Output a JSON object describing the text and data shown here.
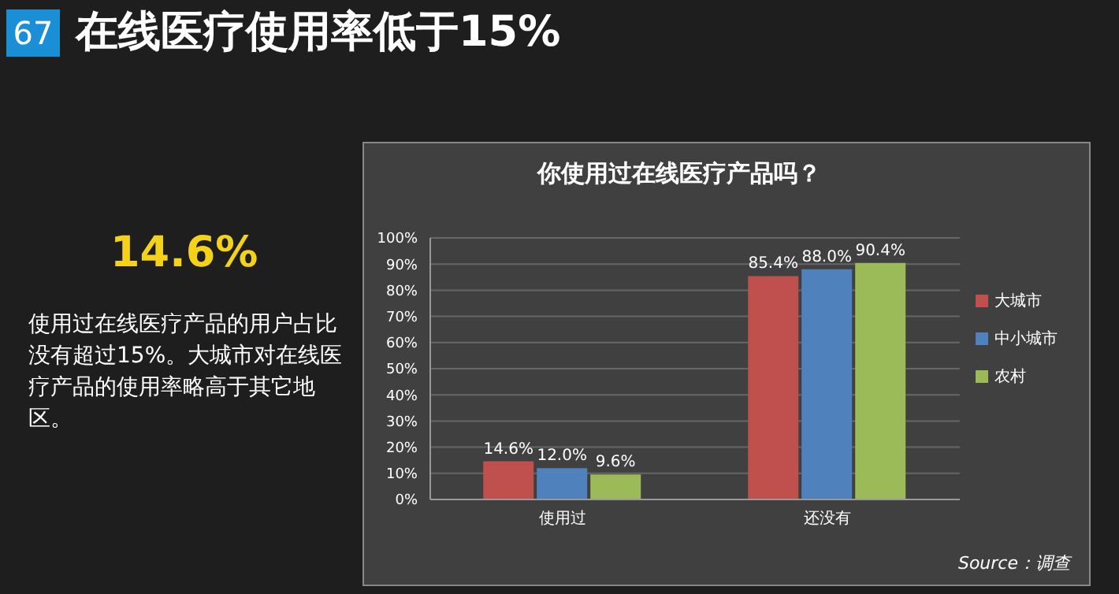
{
  "chart_data": {
    "type": "bar",
    "title": "在线医疗使用率低于15%",
    "subtitle": "你使用过在线医疗产品吗？",
    "annotations": [
      "67",
      "14.6%",
      "使用过在线医疗产品的用户占比没有超过15%。大城市对在线医疗产品的使用率略高于其它地区。",
      "Source：调查"
    ],
    "categories": [
      "使用过",
      "还没有"
    ],
    "series": [
      {
        "name": "大城市",
        "color": "#c0504d",
        "values": [
          14.6,
          85.4
        ],
        "value_labels": [
          "14.6%",
          "85.4%"
        ]
      },
      {
        "name": "中小城市",
        "color": "#4f81bd",
        "values": [
          12.0,
          88.0
        ],
        "value_labels": [
          "12.0%",
          "88.0%"
        ]
      },
      {
        "name": "农村",
        "color": "#9bbb59",
        "values": [
          9.6,
          90.4
        ],
        "value_labels": [
          "9.6%",
          "90.4%"
        ]
      }
    ],
    "ylim": [
      0,
      100
    ],
    "yticks": [
      {
        "value": 0,
        "label": "0%"
      },
      {
        "value": 10,
        "label": "10%"
      },
      {
        "value": 20,
        "label": "20%"
      },
      {
        "value": 30,
        "label": "30%"
      },
      {
        "value": 40,
        "label": "40%"
      },
      {
        "value": 50,
        "label": "50%"
      },
      {
        "value": 60,
        "label": "60%"
      },
      {
        "value": 70,
        "label": "70%"
      },
      {
        "value": 80,
        "label": "80%"
      },
      {
        "value": 90,
        "label": "90%"
      },
      {
        "value": 100,
        "label": "100%"
      }
    ],
    "grid": "y",
    "legend": "right"
  }
}
